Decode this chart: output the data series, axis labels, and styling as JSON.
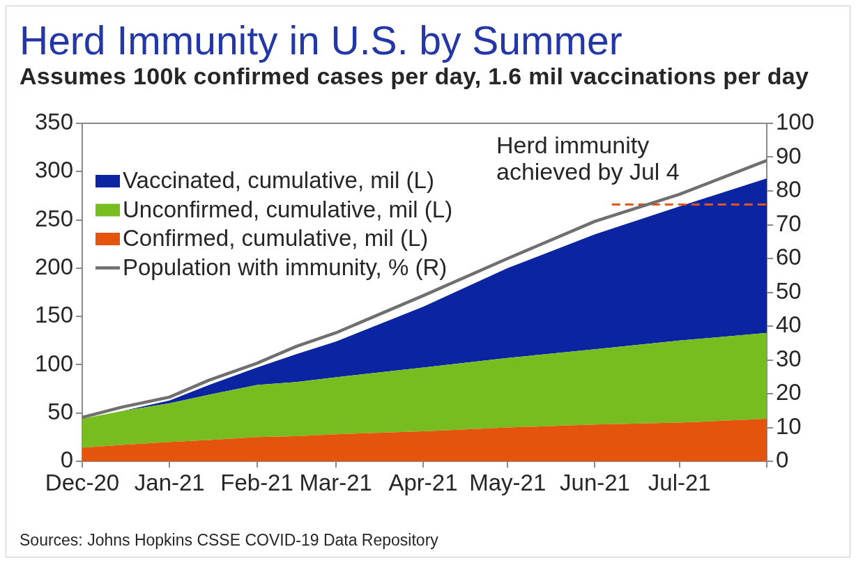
{
  "chart_data": {
    "type": "area",
    "title": "Herd Immunity in U.S. by Summer",
    "subtitle": "Assumes 100k confirmed cases per day, 1.6 mil vaccinations per day",
    "x": [
      "2020-12-01",
      "2020-12-15",
      "2021-01-01",
      "2021-01-15",
      "2021-02-01",
      "2021-02-15",
      "2021-03-01",
      "2021-04-01",
      "2021-05-01",
      "2021-06-01",
      "2021-07-01",
      "2021-08-01"
    ],
    "stacked": true,
    "series": [
      {
        "name": "Confirmed, cumulative, mil (L)",
        "color": "#e4540c",
        "values": [
          14,
          17,
          20,
          22,
          25,
          26,
          28,
          31,
          35,
          38,
          40,
          44
        ]
      },
      {
        "name": "Unconfirmed, cumulative, mil (L)",
        "color": "#78bd1f",
        "values": [
          30,
          35,
          40,
          47,
          54,
          56,
          59,
          66,
          72,
          78,
          85,
          89
        ]
      },
      {
        "name": "Vaccinated, cumulative, mil (L)",
        "color": "#0b24a2",
        "values": [
          0,
          0,
          3,
          10,
          18,
          29,
          37,
          63,
          93,
          119,
          139,
          160
        ]
      },
      {
        "name": "Population with immunity, % (R)",
        "type": "line",
        "axis": "y2",
        "color": "#6f6f6f",
        "values": [
          13,
          16,
          19,
          24,
          29,
          34,
          38,
          49,
          60,
          71,
          79,
          89
        ]
      },
      {
        "type": "line",
        "axis": "y2",
        "color": "#e2571c",
        "line_style": "dashed",
        "x": [
          "2021-06-07",
          "2021-08-01"
        ],
        "values": [
          76,
          76
        ]
      }
    ],
    "xlim": [
      "2020-12-01",
      "2021-08-01"
    ],
    "xticks": [
      {
        "value": "2020-12-01",
        "label": "Dec-20"
      },
      {
        "value": "2021-01-01",
        "label": "Jan-21"
      },
      {
        "value": "2021-02-01",
        "label": "Feb-21"
      },
      {
        "value": "2021-03-01",
        "label": "Mar-21"
      },
      {
        "value": "2021-04-01",
        "label": "Apr-21"
      },
      {
        "value": "2021-05-01",
        "label": "May-21"
      },
      {
        "value": "2021-06-01",
        "label": "Jun-21"
      },
      {
        "value": "2021-07-01",
        "label": "Jul-21"
      },
      {
        "value": "2021-08-01",
        "label": null
      }
    ],
    "ylim": [
      0,
      350
    ],
    "yticks": [
      0,
      50,
      100,
      150,
      200,
      250,
      300,
      350
    ],
    "y2lim": [
      0,
      100
    ],
    "y2ticks": [
      0,
      10,
      20,
      30,
      40,
      50,
      60,
      70,
      80,
      90,
      100
    ],
    "legend": "top left",
    "annotations": [
      "Herd immunity achieved by Jul 4",
      "Sources: Johns Hopkins CSSE COVID-19 Data Repository"
    ]
  }
}
